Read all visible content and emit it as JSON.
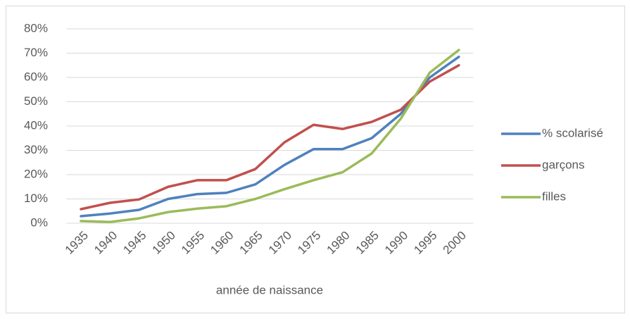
{
  "chart_data": {
    "type": "line",
    "x_label": "année de naissance",
    "categories": [
      "1935",
      "1940",
      "1945",
      "1950",
      "1955",
      "1960",
      "1965",
      "1970",
      "1975",
      "1980",
      "1985",
      "1990",
      "1995",
      "2000"
    ],
    "series": [
      {
        "name": "% scolarisé",
        "color": "#4f81bd",
        "values": [
          2.9,
          4,
          5.5,
          10,
          12,
          12.5,
          16,
          24,
          30.5,
          30.5,
          35,
          45,
          60,
          68.5
        ]
      },
      {
        "name": "garçons",
        "color": "#c0504d",
        "values": [
          5.8,
          8.4,
          9.8,
          15,
          17.7,
          17.7,
          22.3,
          33.3,
          40.5,
          38.8,
          41.7,
          46.7,
          58.3,
          65
        ]
      },
      {
        "name": "filles",
        "color": "#9bbb59",
        "values": [
          0.9,
          0.5,
          2,
          4.6,
          6,
          7,
          10,
          14,
          17.7,
          21,
          28.7,
          43,
          62,
          71.3
        ]
      }
    ],
    "ylim": [
      0,
      80
    ],
    "yticks": [
      {
        "value": 0,
        "label": "0%"
      },
      {
        "value": 10,
        "label": "10%"
      },
      {
        "value": 20,
        "label": "20%"
      },
      {
        "value": 30,
        "label": "30%"
      },
      {
        "value": 40,
        "label": "40%"
      },
      {
        "value": 50,
        "label": "50%"
      },
      {
        "value": 60,
        "label": "60%"
      },
      {
        "value": 70,
        "label": "70%"
      },
      {
        "value": 80,
        "label": "80%"
      }
    ],
    "grid": true,
    "legend": "right"
  }
}
